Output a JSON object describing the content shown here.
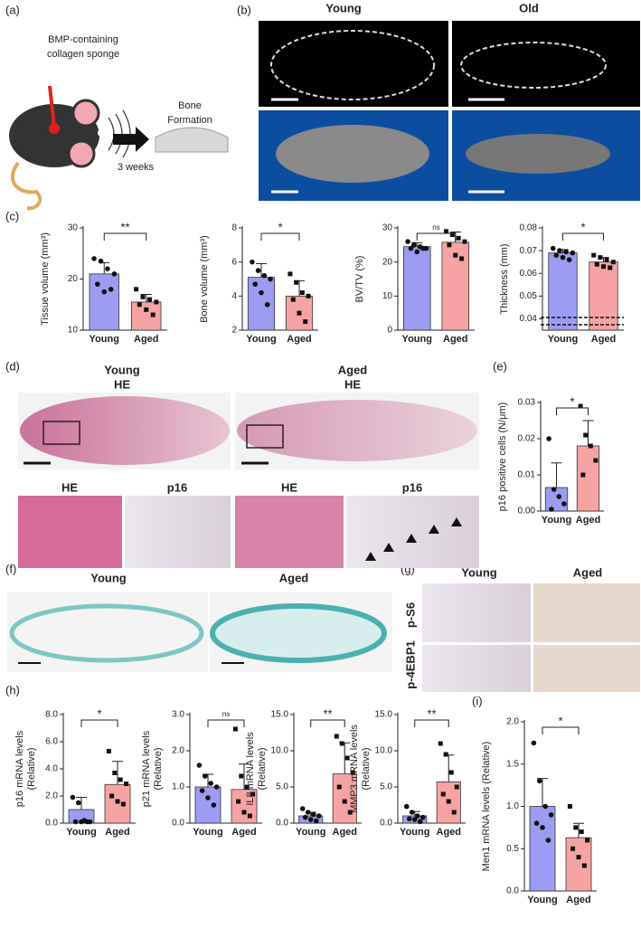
{
  "panel_labels": [
    "(a)",
    "(b)",
    "(c)",
    "(d)",
    "(e)",
    "(f)",
    "(g)",
    "(h)",
    "(i)"
  ],
  "panel_a": {
    "sponge_line1": "BMP-containing",
    "sponge_line2": "collagen sponge",
    "result_line1": "Bone",
    "result_line2": "Formation",
    "time": "3 weeks"
  },
  "panel_b": {
    "young": "Young",
    "old": "Old"
  },
  "panel_d": {
    "young": "Young",
    "young_stain": "HE",
    "aged": "Aged",
    "aged_stain": "HE",
    "zoom_labels": [
      "HE",
      "p16",
      "HE",
      "p16"
    ]
  },
  "panel_f": {
    "young": "Young",
    "aged": "Aged"
  },
  "panel_g": {
    "young": "Young",
    "aged": "Aged",
    "rows": [
      "p-S6",
      "p-4EBP1"
    ]
  },
  "chart_data": [
    {
      "type": "bar",
      "ylabel": [
        "Tissue volume (mm³)"
      ],
      "categories": [
        "Young",
        "Aged"
      ],
      "values": [
        21,
        15.5
      ],
      "errors": [
        2.2,
        1.5
      ],
      "points": [
        [
          24,
          23.5,
          22,
          21,
          19,
          17.5,
          18
        ],
        [
          18,
          16.5,
          16,
          15.5,
          15,
          14,
          13
        ]
      ],
      "colors": [
        "#9c9cf2",
        "#f5a3a3"
      ],
      "ylim": [
        10,
        30
      ],
      "yticks": [
        10,
        20,
        30
      ],
      "significance": "**"
    },
    {
      "type": "bar",
      "ylabel": [
        "Bone volume (mm³)"
      ],
      "categories": [
        "Young",
        "Aged"
      ],
      "values": [
        5.1,
        4.0
      ],
      "errors": [
        0.8,
        0.9
      ],
      "points": [
        [
          6.0,
          5.5,
          5.2,
          5,
          4.7,
          4.2,
          3.5
        ],
        [
          5.3,
          4.8,
          4.2,
          4,
          3.8,
          3,
          2.5
        ]
      ],
      "colors": [
        "#9c9cf2",
        "#f5a3a3"
      ],
      "ylim": [
        2,
        8
      ],
      "yticks": [
        2,
        4,
        6,
        8
      ],
      "significance": "*"
    },
    {
      "type": "bar",
      "ylabel": [
        "BV/TV (%)"
      ],
      "categories": [
        "Young",
        "Aged"
      ],
      "values": [
        24.5,
        25.8
      ],
      "errors": [
        1.2,
        3
      ],
      "points": [
        [
          26,
          25,
          24.5,
          24,
          24,
          23,
          24
        ],
        [
          29,
          28,
          27,
          26,
          25,
          22,
          21
        ]
      ],
      "colors": [
        "#9c9cf2",
        "#f5a3a3"
      ],
      "ylim": [
        0,
        30
      ],
      "yticks": [
        0,
        10,
        20,
        30
      ],
      "significance": "ns"
    },
    {
      "type": "bar",
      "ylabel": [
        "Thickness (mm)"
      ],
      "categories": [
        "Young",
        "Aged"
      ],
      "values": [
        0.069,
        0.065
      ],
      "errors": [
        0.0015,
        0.002
      ],
      "points": [
        [
          0.071,
          0.07,
          0.0695,
          0.069,
          0.068,
          0.067,
          0.066
        ],
        [
          0.068,
          0.067,
          0.066,
          0.065,
          0.064,
          0.063,
          0.0625
        ]
      ],
      "colors": [
        "#9c9cf2",
        "#f5a3a3"
      ],
      "ylim": [
        0.035,
        0.08
      ],
      "yticks": [
        0.04,
        0.05,
        0.06,
        0.07,
        0.08
      ],
      "significance": "*"
    },
    {
      "type": "bar",
      "ylabel": [
        "p16 positive cells (N/μm)"
      ],
      "categories": [
        "Young",
        "Aged"
      ],
      "values": [
        0.0065,
        0.018
      ],
      "errors": [
        0.0068,
        0.007
      ],
      "points": [
        [
          0.02,
          0.006,
          0.004,
          0.002,
          0.0005
        ],
        [
          0.029,
          0.021,
          0.018,
          0.014,
          0.01
        ]
      ],
      "colors": [
        "#9c9cf2",
        "#f5a3a3"
      ],
      "ylim": [
        0,
        0.03
      ],
      "yticks": [
        {
          "value": 0,
          "label": "0.00"
        },
        0.01,
        0.02,
        0.03
      ],
      "significance": "*"
    },
    {
      "type": "bar",
      "ylabel": [
        "p16 mRNA levels",
        "(Relative)"
      ],
      "categories": [
        "Young",
        "Aged"
      ],
      "values": [
        1.0,
        2.85
      ],
      "errors": [
        0.9,
        1.7
      ],
      "points": [
        [
          1.9,
          1.5,
          0.2,
          0.1,
          0.1,
          0.1,
          0.1
        ],
        [
          5.3,
          3.7,
          3.2,
          2.9,
          2.0,
          1.6,
          1.4
        ]
      ],
      "colors": [
        "#9c9cf2",
        "#f5a3a3"
      ],
      "ylim": [
        0,
        8
      ],
      "yticks": [
        {
          "value": 0,
          "label": "0.0"
        },
        {
          "value": 2,
          "label": "2.0"
        },
        {
          "value": 4,
          "label": "4.0"
        },
        {
          "value": 6,
          "label": "6.0"
        },
        {
          "value": 8,
          "label": "8.0"
        }
      ],
      "significance": "*"
    },
    {
      "type": "bar",
      "ylabel": [
        "p21 mRNA levels",
        "(Relative)"
      ],
      "categories": [
        "Young",
        "Aged"
      ],
      "values": [
        1.0,
        0.93
      ],
      "errors": [
        0.35,
        0.7
      ],
      "points": [
        [
          1.6,
          1.3,
          1.1,
          1.0,
          0.9,
          0.7,
          0.5
        ],
        [
          2.6,
          1.3,
          1.0,
          0.8,
          0.6,
          0.3,
          0.2
        ]
      ],
      "colors": [
        "#9c9cf2",
        "#f5a3a3"
      ],
      "ylim": [
        0,
        3
      ],
      "yticks": [
        {
          "value": 0,
          "label": "0.0"
        },
        {
          "value": 1,
          "label": "1.0"
        },
        {
          "value": 2,
          "label": "2.0"
        },
        {
          "value": 3,
          "label": "3.0"
        }
      ],
      "significance": "ns"
    },
    {
      "type": "bar",
      "ylabel": [
        "IL8 mRNA levels",
        "(Relative)"
      ],
      "categories": [
        "Young",
        "Aged"
      ],
      "values": [
        1.0,
        6.8
      ],
      "errors": [
        0.5,
        4.3
      ],
      "points": [
        [
          2,
          1.5,
          1.2,
          1,
          0.8,
          0.5,
          0.3
        ],
        [
          12,
          11,
          9,
          7,
          5,
          3,
          1.5
        ]
      ],
      "colors": [
        "#9c9cf2",
        "#f5a3a3"
      ],
      "ylim": [
        0,
        15
      ],
      "yticks": [
        {
          "value": 0,
          "label": "0.0"
        },
        {
          "value": 5,
          "label": "5.0"
        },
        {
          "value": 10,
          "label": "10.0"
        },
        {
          "value": 15,
          "label": "15.0"
        }
      ],
      "significance": "**"
    },
    {
      "type": "bar",
      "ylabel": [
        "MMP3 mRNA levels",
        "(Relative)"
      ],
      "categories": [
        "Young",
        "Aged"
      ],
      "values": [
        1.0,
        5.7
      ],
      "errors": [
        0.6,
        3.7
      ],
      "points": [
        [
          2.3,
          1.5,
          1.0,
          0.8,
          0.6,
          0.5,
          0.2
        ],
        [
          11,
          9.5,
          7,
          5,
          4,
          3,
          1.5
        ]
      ],
      "colors": [
        "#9c9cf2",
        "#f5a3a3"
      ],
      "ylim": [
        0,
        15
      ],
      "yticks": [
        {
          "value": 0,
          "label": "0.0"
        },
        {
          "value": 5,
          "label": "5.0"
        },
        {
          "value": 10,
          "label": "10.0"
        },
        {
          "value": 15,
          "label": "15.0"
        }
      ],
      "significance": "**"
    },
    {
      "type": "bar",
      "ylabel": [
        "Men1 mRNA levels (Relative)"
      ],
      "categories": [
        "Young",
        "Aged"
      ],
      "values": [
        1.0,
        0.63
      ],
      "errors": [
        0.33,
        0.17
      ],
      "points": [
        [
          1.75,
          1.3,
          1.0,
          0.9,
          0.8,
          0.75,
          0.6
        ],
        [
          1.0,
          0.75,
          0.7,
          0.6,
          0.5,
          0.4,
          0.3
        ]
      ],
      "colors": [
        "#9c9cf2",
        "#f5a3a3"
      ],
      "ylim": [
        0,
        2
      ],
      "yticks": [
        {
          "value": 0,
          "label": "0.0"
        },
        {
          "value": 0.5,
          "label": "0.5"
        },
        {
          "value": 1,
          "label": "1.0"
        },
        {
          "value": 1.5,
          "label": "1.5"
        },
        {
          "value": 2,
          "label": "2.0"
        }
      ],
      "significance": "*"
    }
  ]
}
